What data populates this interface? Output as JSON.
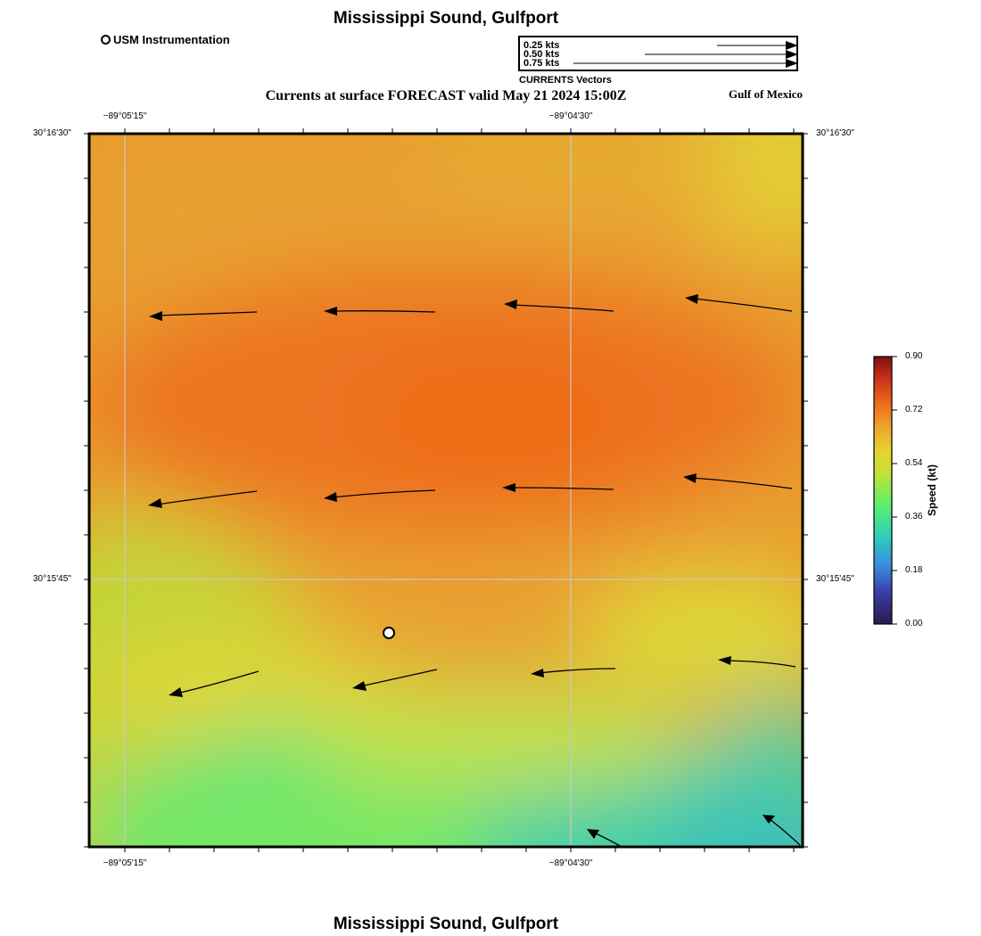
{
  "map": {
    "title": "Mississippi Sound, Gulfport",
    "subtitle": "Currents at surface FORECAST valid May 21 2024 15:00Z",
    "region_label": "Gulf of Mexico",
    "footer_title": "Mississippi Sound, Gulfport",
    "station_legend": "USM Instrumentation",
    "vector_legend": {
      "entries": [
        "0.25 kts",
        "0.50 kts",
        "0.75 kts"
      ],
      "caption": "CURRENTS Vectors"
    },
    "lat_labels": [
      "30°16'30\"",
      "30°15'45\""
    ],
    "lon_labels": [
      "−89°05'15\"",
      "−89°04'30\""
    ],
    "colorbar": {
      "title": "Speed (kt)",
      "ticks": [
        "0.90",
        "0.72",
        "0.54",
        "0.36",
        "0.18",
        "0.00"
      ]
    }
  }
}
